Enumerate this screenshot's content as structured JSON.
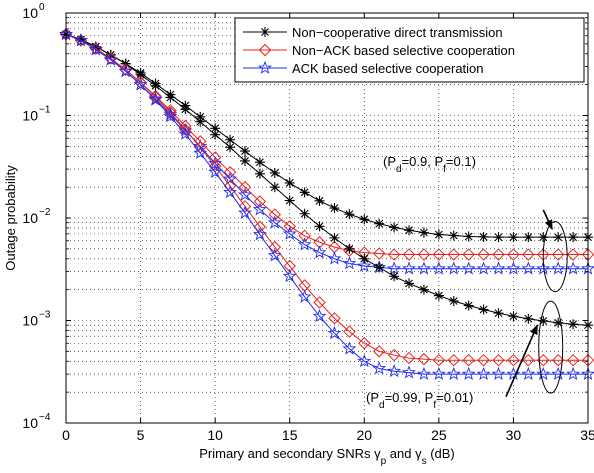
{
  "chart_data": {
    "type": "line",
    "xlabel": "Primary and secondary SNRs γp and γs (dB)",
    "xlabel_parts": [
      "Primary and secondary SNRs ",
      "γ",
      "p",
      " and ",
      "γ",
      "s",
      " (dB)"
    ],
    "ylabel": "Outage probability",
    "xlim": [
      0,
      35
    ],
    "ylim": [
      0.0001,
      1
    ],
    "yscale": "log",
    "grid": true,
    "legend_position": "top-right",
    "x_ticks": [
      0,
      5,
      10,
      15,
      20,
      25,
      30,
      35
    ],
    "y_ticks": [
      {
        "value": 1,
        "base": "10",
        "exp": "0"
      },
      {
        "value": 0.1,
        "base": "10",
        "exp": "−1"
      },
      {
        "value": 0.01,
        "base": "10",
        "exp": "−2"
      },
      {
        "value": 0.001,
        "base": "10",
        "exp": "−3"
      },
      {
        "value": 0.0001,
        "base": "10",
        "exp": "−4"
      }
    ],
    "x": [
      0,
      1,
      2,
      3,
      4,
      5,
      6,
      7,
      8,
      9,
      10,
      11,
      12,
      13,
      14,
      15,
      16,
      17,
      18,
      19,
      20,
      21,
      22,
      23,
      24,
      25,
      26,
      27,
      28,
      29,
      30,
      31,
      32,
      33,
      34,
      35
    ],
    "series": [
      {
        "name": "Non−cooperative direct transmission",
        "marker": "star",
        "color": "#000000",
        "group": "a",
        "values": [
          0.62,
          0.55,
          0.47,
          0.39,
          0.32,
          0.26,
          0.205,
          0.16,
          0.125,
          0.097,
          0.075,
          0.058,
          0.045,
          0.035,
          0.0275,
          0.022,
          0.0178,
          0.0147,
          0.0125,
          0.0109,
          0.0097,
          0.0088,
          0.0081,
          0.0076,
          0.0072,
          0.0069,
          0.00675,
          0.0066,
          0.00655,
          0.0065,
          0.0065,
          0.0065,
          0.0065,
          0.0065,
          0.0065,
          0.0065
        ]
      },
      {
        "name": "Non−ACK based selective cooperation",
        "marker": "diamond",
        "color": "#e8211c",
        "group": "a",
        "values": [
          0.62,
          0.54,
          0.45,
          0.36,
          0.28,
          0.21,
          0.155,
          0.112,
          0.079,
          0.056,
          0.039,
          0.028,
          0.02,
          0.0145,
          0.0108,
          0.0083,
          0.0067,
          0.0058,
          0.0052,
          0.0048,
          0.0046,
          0.0045,
          0.0044,
          0.0044,
          0.0044,
          0.0044,
          0.0044,
          0.0044,
          0.0044,
          0.0044,
          0.0044,
          0.0044,
          0.0044,
          0.0044,
          0.0044,
          0.0044
        ]
      },
      {
        "name": "ACK based selective cooperation",
        "marker": "pentagram",
        "color": "#1f2cf0",
        "group": "a",
        "values": [
          0.62,
          0.54,
          0.44,
          0.35,
          0.27,
          0.2,
          0.145,
          0.103,
          0.072,
          0.05,
          0.034,
          0.024,
          0.0168,
          0.0121,
          0.009,
          0.007,
          0.0055,
          0.0046,
          0.004,
          0.0036,
          0.0034,
          0.0033,
          0.0032,
          0.0032,
          0.0032,
          0.0032,
          0.0032,
          0.0032,
          0.0032,
          0.0032,
          0.0032,
          0.0032,
          0.0032,
          0.0032,
          0.0032,
          0.0032
        ]
      },
      {
        "name": "Non−cooperative direct transmission",
        "marker": "star",
        "color": "#000000",
        "group": "b",
        "values": [
          0.62,
          0.55,
          0.47,
          0.39,
          0.32,
          0.25,
          0.195,
          0.15,
          0.115,
          0.087,
          0.065,
          0.049,
          0.036,
          0.027,
          0.02,
          0.0148,
          0.011,
          0.0083,
          0.0064,
          0.005,
          0.004,
          0.0033,
          0.0027,
          0.0023,
          0.002,
          0.00175,
          0.00155,
          0.0014,
          0.00128,
          0.00118,
          0.0011,
          0.00104,
          0.00099,
          0.00095,
          0.00092,
          0.0009
        ]
      },
      {
        "name": "Non−ACK based selective cooperation",
        "marker": "diamond",
        "color": "#e8211c",
        "group": "b",
        "values": [
          0.62,
          0.54,
          0.45,
          0.36,
          0.28,
          0.21,
          0.152,
          0.107,
          0.073,
          0.049,
          0.032,
          0.0205,
          0.013,
          0.0082,
          0.0052,
          0.0034,
          0.0022,
          0.0015,
          0.00105,
          0.00078,
          0.0006,
          0.0005,
          0.00046,
          0.00043,
          0.00042,
          0.00041,
          0.00041,
          0.00041,
          0.00041,
          0.00041,
          0.00041,
          0.00041,
          0.00041,
          0.00041,
          0.00041,
          0.00041
        ]
      },
      {
        "name": "ACK based selective cooperation",
        "marker": "pentagram",
        "color": "#1f2cf0",
        "group": "b",
        "values": [
          0.62,
          0.54,
          0.44,
          0.35,
          0.27,
          0.2,
          0.142,
          0.098,
          0.066,
          0.043,
          0.028,
          0.0178,
          0.0112,
          0.0069,
          0.0043,
          0.0027,
          0.0017,
          0.0011,
          0.00075,
          0.00053,
          0.0004,
          0.00034,
          0.00032,
          0.00031,
          0.0003,
          0.0003,
          0.0003,
          0.0003,
          0.0003,
          0.0003,
          0.0003,
          0.0003,
          0.0003,
          0.0003,
          0.0003,
          0.0003
        ]
      }
    ],
    "legend": [
      {
        "label": "Non−cooperative direct transmission",
        "marker": "star",
        "color": "#000000"
      },
      {
        "label": "Non−ACK based selective cooperation",
        "marker": "diamond",
        "color": "#e8211c"
      },
      {
        "label": "ACK based selective cooperation",
        "marker": "pentagram",
        "color": "#1f2cf0"
      }
    ],
    "annotations": [
      {
        "text": "(Pd=0.9, Pf=0.1)",
        "parts": [
          "(P",
          "d",
          "=0.9, P",
          "f",
          "=0.1)"
        ],
        "ellipse_center": [
          32.8,
          0.0042
        ],
        "arrow_tail": [
          32.0,
          0.012
        ],
        "arrow_head": [
          32.6,
          0.0078
        ]
      },
      {
        "text": "(Pd=0.99, Pf=0.01)",
        "parts": [
          "(P",
          "d",
          "=0.99, P",
          "f",
          "=0.01)"
        ],
        "ellipse_center": [
          32.5,
          0.00055
        ],
        "arrow_tail": [
          29.5,
          0.00018
        ],
        "arrow_head": [
          31.6,
          0.0009
        ]
      }
    ]
  }
}
